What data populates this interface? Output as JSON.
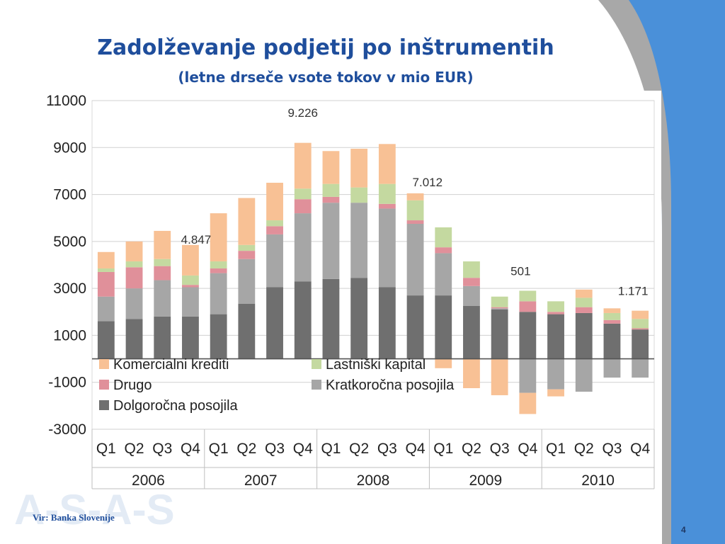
{
  "slide": {
    "title": "Zadolževanje podjetij po inštrumentih",
    "subtitle": "(letne drseče vsote tokov v mio EUR)",
    "source": "Vir: Banka Slovenije",
    "page_number": "4",
    "logo_text": "A-S-A-S",
    "colors": {
      "title": "#1f4e9c",
      "background_accent": "#4a90d9",
      "swoosh": "#a8a8a8"
    }
  },
  "chart_data": {
    "type": "bar",
    "stacked": true,
    "xlabel": "",
    "ylabel": "",
    "ylim": [
      -3000,
      11000
    ],
    "yticks": [
      "11000",
      "9000",
      "7000",
      "5000",
      "3000",
      "1000",
      "-1000",
      "-3000"
    ],
    "grid": true,
    "quarters": [
      "Q1",
      "Q2",
      "Q3",
      "Q4",
      "Q1",
      "Q2",
      "Q3",
      "Q4",
      "Q1",
      "Q2",
      "Q3",
      "Q4",
      "Q1",
      "Q2",
      "Q3",
      "Q4",
      "Q1",
      "Q2",
      "Q3",
      "Q4"
    ],
    "years": [
      "2006",
      "2007",
      "2008",
      "2009",
      "2010"
    ],
    "series": [
      {
        "name": "Dolgoročna posojila",
        "color": "#6f6f6f",
        "values": [
          1600,
          1700,
          1800,
          1800,
          1900,
          2350,
          3050,
          3300,
          3400,
          3450,
          3050,
          2700,
          2700,
          2250,
          2100,
          2000,
          1900,
          1950,
          1500,
          1250
        ]
      },
      {
        "name": "Kratkoročna posojila",
        "color": "#a6a6a6",
        "values": [
          1050,
          1300,
          1550,
          1250,
          1750,
          1900,
          2250,
          2900,
          3250,
          3200,
          3350,
          3050,
          1800,
          850,
          50,
          -1450,
          -1300,
          -1400,
          -800,
          -800
        ]
      },
      {
        "name": "Drugo",
        "color": "#e0909a",
        "values": [
          1050,
          900,
          600,
          100,
          200,
          350,
          350,
          600,
          250,
          0,
          200,
          150,
          250,
          350,
          50,
          450,
          100,
          250,
          150,
          50
        ]
      },
      {
        "name": "Lastniški kapital",
        "color": "#c4d9a0",
        "values": [
          150,
          250,
          300,
          400,
          300,
          250,
          250,
          450,
          550,
          650,
          850,
          850,
          850,
          700,
          450,
          450,
          450,
          400,
          300,
          400
        ]
      },
      {
        "name": "Komercialni krediti",
        "color": "#f8c195",
        "values": [
          700,
          850,
          1200,
          1300,
          2050,
          2000,
          1600,
          1950,
          1400,
          1650,
          1700,
          300,
          -400,
          -1250,
          -1550,
          -900,
          -300,
          350,
          200,
          350
        ]
      }
    ],
    "annotations": [
      {
        "text": "4.847",
        "index": 3
      },
      {
        "text": "9.226",
        "index": 7
      },
      {
        "text": "7.012",
        "index": 11
      },
      {
        "text": "501",
        "index": 15
      },
      {
        "text": "1.171",
        "index": 19
      }
    ],
    "legend": {
      "placement": "bottom-left",
      "order": [
        "Komercialni krediti",
        "Lastniški kapital",
        "Drugo",
        "Kratkoročna posojila",
        "Dolgoročna posojila"
      ]
    }
  }
}
